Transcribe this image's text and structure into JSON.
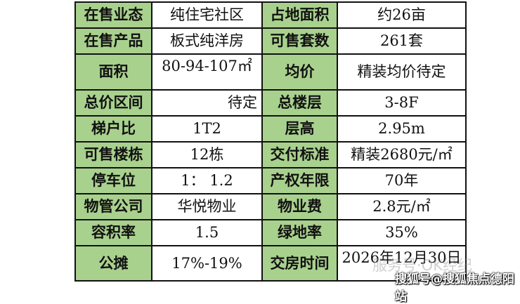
{
  "rows": [
    {
      "l1": "在售业态",
      "v1": "纯住宅社区",
      "l2": "占地面积",
      "v2": "约26亩"
    },
    {
      "l1": "在售产品",
      "v1": "板式纯洋房",
      "l2": "可售套数",
      "v2": "261套"
    },
    {
      "l1": "面积",
      "v1": "80-94-107㎡",
      "l2": "均价",
      "v2": "精装均价待定"
    },
    {
      "l1": "总价区间",
      "v1": "待定",
      "l2": "总楼层",
      "v2": "3-8F"
    },
    {
      "l1": "梯户比",
      "v1": "1T2",
      "l2": "层高",
      "v2": "2.95m"
    },
    {
      "l1": "可售楼栋",
      "v1": "12栋",
      "l2": "交付标准",
      "v2": "精装2680元/㎡"
    },
    {
      "l1": "停车位",
      "v1": "1： 1.2",
      "l2": "产权年限",
      "v2": "70年"
    },
    {
      "l1": "物管公司",
      "v1": "华悦物业",
      "l2": "物业费",
      "v2": "2.8元/㎡"
    },
    {
      "l1": "容积率",
      "v1": "1.5",
      "l2": "绿地率",
      "v2": "35%"
    },
    {
      "l1": "公摊",
      "v1": "17%-19%",
      "l2": "交房时间",
      "v2": "2026年12月30日"
    }
  ],
  "watermark": {
    "faint": "服务号·OK经纪",
    "source": "搜狐号@搜狐焦点德阳站"
  },
  "colors": {
    "label_bg": "#a9d18e",
    "value_bg": "#ffffff",
    "border": "#111111"
  }
}
